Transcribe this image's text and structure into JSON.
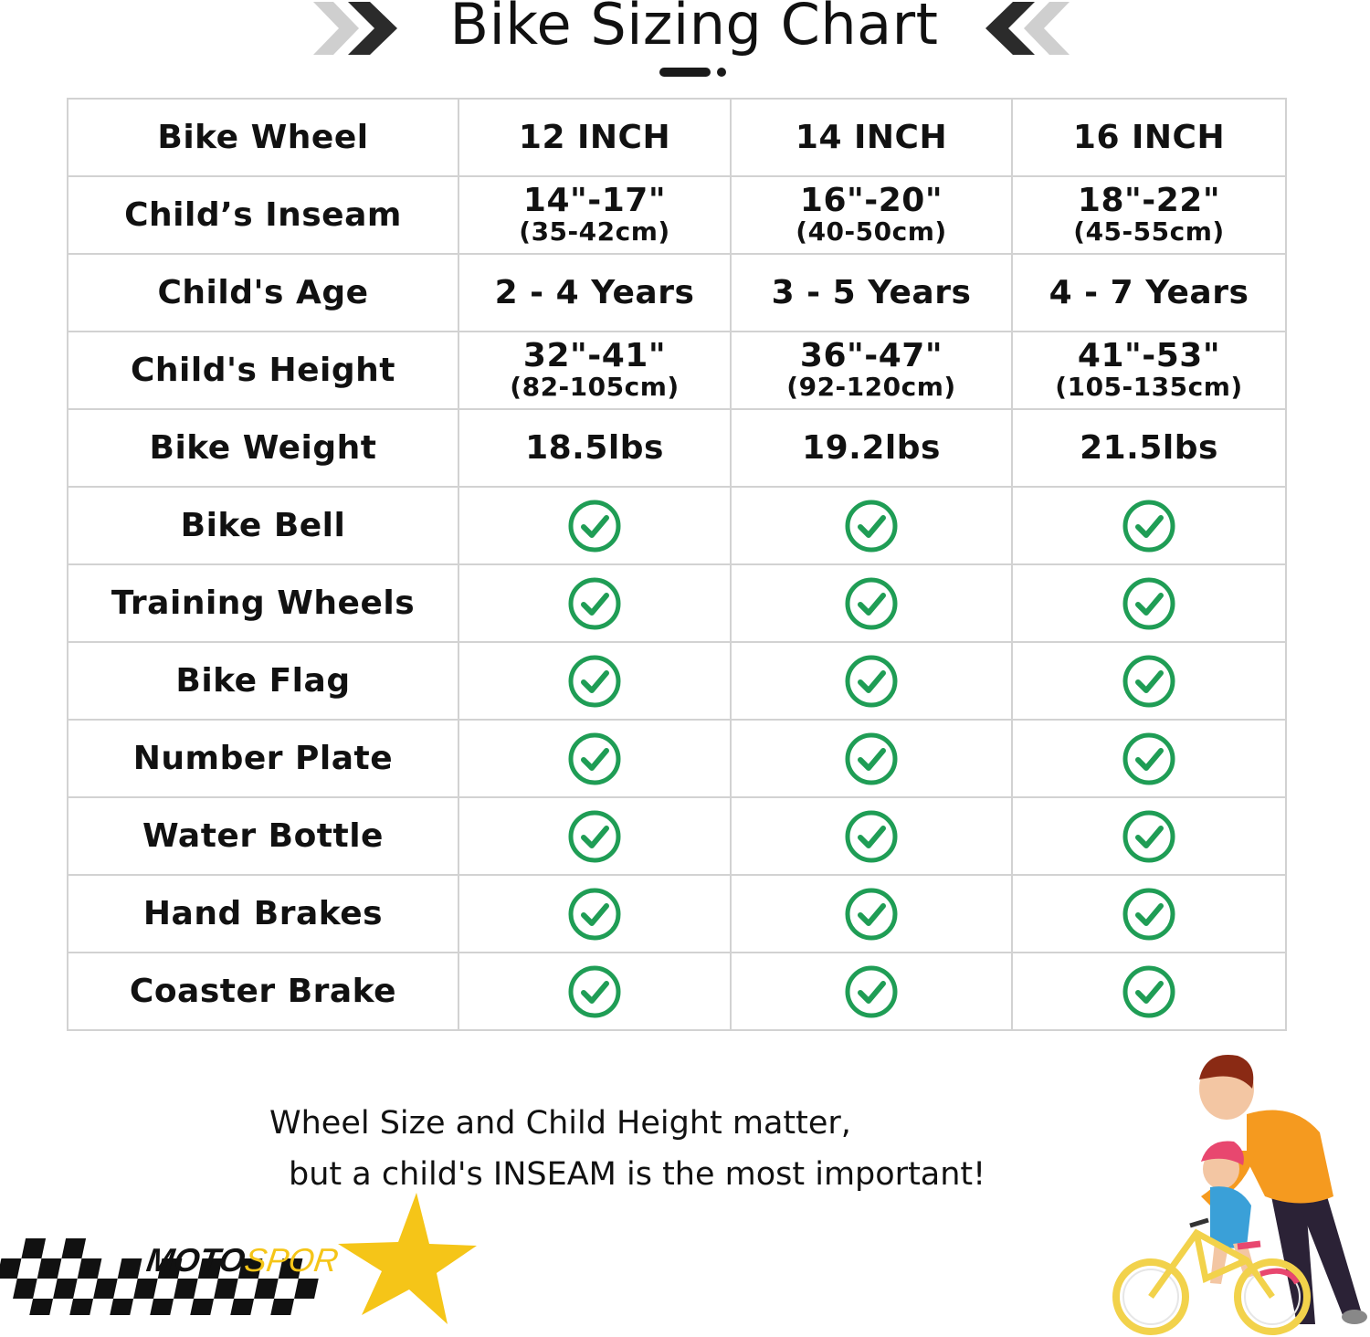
{
  "title": "Bike Sizing Chart",
  "brand": {
    "text_part1": "MOTO",
    "text_part2": "SPORT"
  },
  "colors": {
    "check_green": "#1f9d55",
    "star_yellow": "#f5c518",
    "chevron_dark": "#2b2b2b",
    "chevron_light": "#c8c8c8",
    "grid_border": "#d2d2d2"
  },
  "table": {
    "header": {
      "label": "Bike Wheel",
      "columns": [
        "12 INCH",
        "14 INCH",
        "16 INCH"
      ]
    },
    "rows": [
      {
        "label": "Child’s Inseam",
        "cells": [
          {
            "main": "14\"-17\"",
            "sub": "(35-42cm)"
          },
          {
            "main": "16\"-20\"",
            "sub": "(40-50cm)"
          },
          {
            "main": "18\"-22\"",
            "sub": "(45-55cm)"
          }
        ]
      },
      {
        "label": "Child's Age",
        "cells": [
          {
            "main": "2 - 4 Years"
          },
          {
            "main": "3 - 5 Years"
          },
          {
            "main": "4 - 7 Years"
          }
        ]
      },
      {
        "label": "Child's Height",
        "cells": [
          {
            "main": "32\"-41\"",
            "sub": "(82-105cm)"
          },
          {
            "main": "36\"-47\"",
            "sub": "(92-120cm)"
          },
          {
            "main": "41\"-53\"",
            "sub": "(105-135cm)"
          }
        ]
      },
      {
        "label": "Bike Weight",
        "cells": [
          {
            "main": "18.5lbs"
          },
          {
            "main": "19.2lbs"
          },
          {
            "main": "21.5lbs"
          }
        ]
      }
    ],
    "feature_rows": [
      {
        "label": "Bike Bell",
        "icon": "check-circle-icon",
        "included": [
          true,
          true,
          true
        ]
      },
      {
        "label": "Training Wheels",
        "icon": "check-circle-icon",
        "included": [
          true,
          true,
          true
        ]
      },
      {
        "label": "Bike Flag",
        "icon": "check-circle-icon",
        "included": [
          true,
          true,
          true
        ]
      },
      {
        "label": "Number Plate",
        "icon": "check-circle-icon",
        "included": [
          true,
          true,
          true
        ]
      },
      {
        "label": "Water Bottle",
        "icon": "check-circle-icon",
        "included": [
          true,
          true,
          true
        ]
      },
      {
        "label": "Hand Brakes",
        "icon": "check-circle-icon",
        "included": [
          true,
          true,
          true
        ]
      },
      {
        "label": "Coaster Brake",
        "icon": "check-circle-icon",
        "included": [
          true,
          true,
          true
        ]
      }
    ]
  },
  "note": {
    "line1": "Wheel Size and Child Height matter,",
    "line2": "but a child's INSEAM is the most important!"
  }
}
